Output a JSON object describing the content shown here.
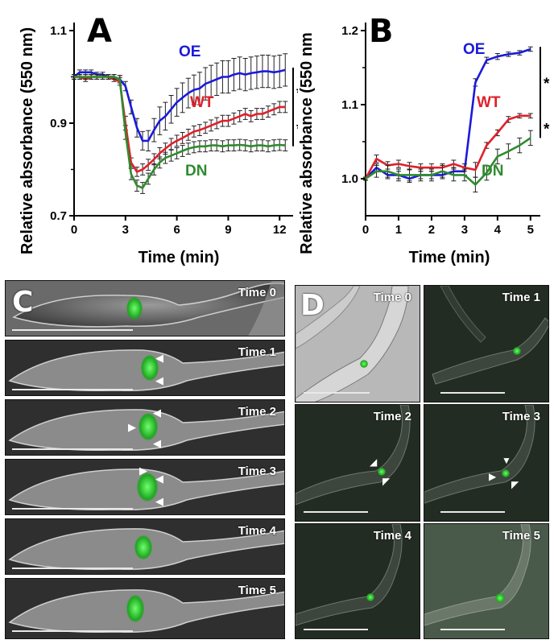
{
  "chart_data": [
    {
      "panel": "A",
      "type": "line",
      "xlabel": "Time (min)",
      "ylabel": "Relative absorbance (550 nm)",
      "xlim": [
        0,
        12.6
      ],
      "ylim": [
        0.7,
        1.1
      ],
      "xticks": [
        "0",
        "3",
        "6",
        "9",
        "12"
      ],
      "yticks": [
        "0.7",
        "0.9",
        "1.1"
      ],
      "annotations": [
        "*",
        "*"
      ],
      "series": [
        {
          "name": "OE",
          "color": "#1a1adb",
          "x": [
            0,
            0.33,
            0.67,
            1,
            1.33,
            1.67,
            2,
            2.33,
            2.67,
            3,
            3.33,
            3.67,
            4,
            4.33,
            4.67,
            5,
            5.33,
            5.67,
            6,
            6.33,
            6.67,
            7,
            7.33,
            7.67,
            8,
            8.33,
            8.67,
            9,
            9.33,
            9.67,
            10,
            10.33,
            10.67,
            11,
            11.33,
            11.67,
            12,
            12.33
          ],
          "y": [
            1.0,
            1.01,
            1.01,
            1.01,
            1.005,
            1.005,
            1.0,
            1.0,
            0.995,
            0.98,
            0.935,
            0.89,
            0.862,
            0.862,
            0.885,
            0.905,
            0.915,
            0.93,
            0.945,
            0.955,
            0.965,
            0.972,
            0.975,
            0.985,
            0.99,
            0.995,
            1.0,
            1.0,
            1.005,
            1.008,
            1.005,
            1.008,
            1.01,
            1.012,
            1.012,
            1.01,
            1.012,
            1.015
          ],
          "err": [
            0.005,
            0.005,
            0.005,
            0.005,
            0.005,
            0.005,
            0.005,
            0.005,
            0.008,
            0.01,
            0.015,
            0.02,
            0.02,
            0.022,
            0.025,
            0.03,
            0.03,
            0.03,
            0.03,
            0.032,
            0.032,
            0.032,
            0.035,
            0.035,
            0.035,
            0.035,
            0.035,
            0.035,
            0.035,
            0.035,
            0.035,
            0.035,
            0.035,
            0.035,
            0.035,
            0.035,
            0.035,
            0.035
          ]
        },
        {
          "name": "WT",
          "color": "#e0202a",
          "x": [
            0,
            0.33,
            0.67,
            1,
            1.33,
            1.67,
            2,
            2.33,
            2.67,
            3,
            3.33,
            3.67,
            4,
            4.33,
            4.67,
            5,
            5.33,
            5.67,
            6,
            6.33,
            6.67,
            7,
            7.33,
            7.67,
            8,
            8.33,
            8.67,
            9,
            9.33,
            9.67,
            10,
            10.33,
            10.67,
            11,
            11.33,
            11.67,
            12,
            12.33
          ],
          "y": [
            1.0,
            1.0,
            0.995,
            1.0,
            1.0,
            1.0,
            1.0,
            0.995,
            0.99,
            0.9,
            0.815,
            0.795,
            0.8,
            0.81,
            0.822,
            0.835,
            0.845,
            0.855,
            0.862,
            0.868,
            0.875,
            0.882,
            0.885,
            0.89,
            0.895,
            0.9,
            0.905,
            0.905,
            0.91,
            0.915,
            0.92,
            0.915,
            0.92,
            0.92,
            0.925,
            0.93,
            0.935,
            0.935
          ],
          "err": [
            0.005,
            0.005,
            0.005,
            0.005,
            0.005,
            0.005,
            0.005,
            0.005,
            0.008,
            0.015,
            0.01,
            0.01,
            0.012,
            0.012,
            0.012,
            0.012,
            0.012,
            0.012,
            0.012,
            0.012,
            0.012,
            0.012,
            0.012,
            0.012,
            0.012,
            0.012,
            0.012,
            0.012,
            0.012,
            0.012,
            0.012,
            0.012,
            0.012,
            0.012,
            0.012,
            0.012,
            0.012,
            0.012
          ]
        },
        {
          "name": "DN",
          "color": "#2e8b2e",
          "x": [
            0,
            0.33,
            0.67,
            1,
            1.33,
            1.67,
            2,
            2.33,
            2.67,
            3,
            3.33,
            3.67,
            4,
            4.33,
            4.67,
            5,
            5.33,
            5.67,
            6,
            6.33,
            6.67,
            7,
            7.33,
            7.67,
            8,
            8.33,
            8.67,
            9,
            9.33,
            9.67,
            10,
            10.33,
            10.67,
            11,
            11.33,
            11.67,
            12,
            12.33
          ],
          "y": [
            1.0,
            1.0,
            1.0,
            1.0,
            1.0,
            1.0,
            1.0,
            1.0,
            0.995,
            0.88,
            0.79,
            0.765,
            0.76,
            0.78,
            0.8,
            0.815,
            0.825,
            0.83,
            0.835,
            0.84,
            0.845,
            0.848,
            0.85,
            0.85,
            0.852,
            0.852,
            0.85,
            0.852,
            0.852,
            0.853,
            0.852,
            0.85,
            0.852,
            0.852,
            0.85,
            0.852,
            0.853,
            0.852
          ],
          "err": [
            0.005,
            0.005,
            0.005,
            0.005,
            0.005,
            0.005,
            0.005,
            0.005,
            0.008,
            0.015,
            0.012,
            0.012,
            0.012,
            0.012,
            0.012,
            0.012,
            0.012,
            0.012,
            0.012,
            0.012,
            0.012,
            0.012,
            0.012,
            0.012,
            0.012,
            0.012,
            0.012,
            0.012,
            0.012,
            0.012,
            0.012,
            0.012,
            0.012,
            0.012,
            0.012,
            0.012,
            0.012,
            0.012
          ]
        }
      ]
    },
    {
      "panel": "B",
      "type": "line",
      "xlabel": "Time (min)",
      "ylabel": "Relative absorbance (550 nm",
      "xlim": [
        0,
        5.2
      ],
      "ylim": [
        0.95,
        1.2
      ],
      "xticks": [
        "0",
        "1",
        "2",
        "3",
        "4",
        "5"
      ],
      "yticks": [
        "1.0",
        "1.1",
        "1.2"
      ],
      "annotations": [
        "*",
        "*"
      ],
      "series": [
        {
          "name": "OE",
          "color": "#1a1adb",
          "x": [
            0,
            0.33,
            0.67,
            1,
            1.33,
            1.67,
            2,
            2.33,
            2.67,
            3,
            3.33,
            3.67,
            4,
            4.33,
            4.67,
            5
          ],
          "y": [
            1.0,
            1.015,
            1.005,
            1.005,
            1.0,
            1.005,
            1.005,
            1.005,
            1.01,
            1.01,
            1.13,
            1.16,
            1.165,
            1.168,
            1.17,
            1.175
          ],
          "err": [
            0.002,
            0.005,
            0.005,
            0.005,
            0.005,
            0.005,
            0.005,
            0.005,
            0.005,
            0.005,
            0.005,
            0.004,
            0.004,
            0.003,
            0.003,
            0.003
          ]
        },
        {
          "name": "WT",
          "color": "#e0202a",
          "x": [
            0,
            0.33,
            0.67,
            1,
            1.33,
            1.67,
            2,
            2.33,
            2.67,
            3,
            3.33,
            3.67,
            4,
            4.33,
            4.67,
            5
          ],
          "y": [
            1.0,
            1.027,
            1.018,
            1.02,
            1.017,
            1.015,
            1.015,
            1.015,
            1.02,
            1.015,
            1.012,
            1.045,
            1.062,
            1.08,
            1.085,
            1.085
          ],
          "err": [
            0.002,
            0.005,
            0.005,
            0.005,
            0.005,
            0.005,
            0.005,
            0.005,
            0.005,
            0.005,
            0.01,
            0.004,
            0.004,
            0.004,
            0.003,
            0.003
          ]
        },
        {
          "name": "DN",
          "color": "#2e8b2e",
          "x": [
            0,
            0.33,
            0.67,
            1,
            1.33,
            1.67,
            2,
            2.33,
            2.67,
            3,
            3.33,
            3.67,
            4,
            4.33,
            4.67,
            5
          ],
          "y": [
            1.0,
            1.01,
            1.01,
            1.005,
            1.005,
            1.005,
            1.005,
            1.01,
            1.005,
            1.005,
            0.992,
            1.008,
            1.03,
            1.037,
            1.045,
            1.055
          ],
          "err": [
            0.002,
            0.008,
            0.008,
            0.008,
            0.008,
            0.008,
            0.008,
            0.008,
            0.008,
            0.008,
            0.01,
            0.01,
            0.01,
            0.01,
            0.01,
            0.01
          ]
        }
      ]
    }
  ],
  "panels": {
    "A": {
      "letter": "A"
    },
    "B": {
      "letter": "B"
    },
    "C": {
      "letter": "C",
      "frames": [
        "Time 0",
        "Time 1",
        "Time 2",
        "Time 3",
        "Time 4",
        "Time 5"
      ]
    },
    "D": {
      "letter": "D",
      "frames": [
        "Time 0",
        "Time 1",
        "Time 2",
        "Time 3",
        "Time 4",
        "Time 5"
      ]
    }
  },
  "colors": {
    "oe_blue": "#1a1adb",
    "wt_red": "#e0202a",
    "dn_green": "#2e8b2e",
    "fluorescence": "#3ad63a"
  }
}
